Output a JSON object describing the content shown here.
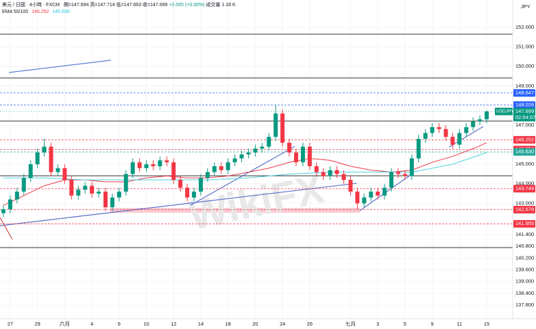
{
  "header": {
    "instrument": "美元 / 日圓 · 4小時 · FXCM",
    "ohlc": [
      "開=147.694",
      "高=147.714",
      "低=147.663",
      "收=147.699",
      "+0.005 (+0.00%)"
    ],
    "volume": "成交量 1.18 K",
    "ema_label": "EMA 50/100",
    "ema50_value": 146.252,
    "ema100_value": {
      "value": 145.63,
      "label": "145.630"
    },
    "currency": "JPY",
    "watermark": "WikiFX"
  },
  "chart_data": {
    "type": "candlestick",
    "categories": [
      null,
      "27",
      null,
      null,
      null,
      "29",
      null,
      null,
      null,
      "六月",
      null,
      null,
      null,
      "4",
      null,
      null,
      null,
      "6",
      null,
      null,
      null,
      "10",
      null,
      null,
      null,
      "12",
      null,
      null,
      null,
      "14",
      null,
      null,
      null,
      "18",
      null,
      null,
      null,
      "20",
      null,
      null,
      null,
      "24",
      null,
      null,
      null,
      "26",
      null,
      null,
      null,
      null,
      null,
      "七月",
      null,
      null,
      null,
      "3",
      null,
      null,
      null,
      "5",
      null,
      null,
      null,
      "9",
      null,
      null,
      null,
      "11",
      null,
      null,
      null,
      "15"
    ],
    "open": [
      142.5,
      142.7,
      143.2,
      143.6,
      144.3,
      145.0,
      145.6,
      145.9,
      144.6,
      144.8,
      144.2,
      143.4,
      143.7,
      143.9,
      143.5,
      143.6,
      142.8,
      143.3,
      143.6,
      144.5,
      145.1,
      144.8,
      145.0,
      144.9,
      145.2,
      145.1,
      144.2,
      143.8,
      143.3,
      143.6,
      144.3,
      144.6,
      144.9,
      144.7,
      145.1,
      145.3,
      145.5,
      145.6,
      145.8,
      145.9,
      146.4,
      147.6,
      146.1,
      145.6,
      145.1,
      145.9,
      144.9,
      144.6,
      144.4,
      144.7,
      144.5,
      144.2,
      143.6,
      143.0,
      143.3,
      143.6,
      143.4,
      143.8,
      144.6,
      144.5,
      144.4,
      145.3,
      146.3,
      146.6,
      146.9,
      146.8,
      146.4,
      146.0,
      146.6,
      146.9,
      147.2,
      147.3
    ],
    "high": [
      142.9,
      143.4,
      143.8,
      144.5,
      145.2,
      145.8,
      146.3,
      146.1,
      145.0,
      145.0,
      144.4,
      143.9,
      144.1,
      144.1,
      143.8,
      143.8,
      143.5,
      143.8,
      144.7,
      145.3,
      145.3,
      145.2,
      145.2,
      145.4,
      145.4,
      145.3,
      144.4,
      144.0,
      143.8,
      144.5,
      144.8,
      145.1,
      145.1,
      145.3,
      145.5,
      145.7,
      145.8,
      146.0,
      146.1,
      146.6,
      148.03,
      147.8,
      146.3,
      145.8,
      146.1,
      146.1,
      145.1,
      144.8,
      144.9,
      144.9,
      144.7,
      144.4,
      143.8,
      143.5,
      143.8,
      143.8,
      144.0,
      144.8,
      144.8,
      144.7,
      145.5,
      146.5,
      146.8,
      147.1,
      147.1,
      147.0,
      146.6,
      146.8,
      147.1,
      147.4,
      147.5,
      147.75
    ],
    "low": [
      142.3,
      142.5,
      143.0,
      143.4,
      144.1,
      144.8,
      145.4,
      144.4,
      144.4,
      144.0,
      143.2,
      143.2,
      143.5,
      143.3,
      143.3,
      142.6,
      142.6,
      143.1,
      143.4,
      144.3,
      144.6,
      144.6,
      144.7,
      144.7,
      144.9,
      144.0,
      143.6,
      143.1,
      143.1,
      143.4,
      144.1,
      144.4,
      144.5,
      144.5,
      144.9,
      145.1,
      145.3,
      145.4,
      145.6,
      145.7,
      146.2,
      145.9,
      145.4,
      144.9,
      144.9,
      144.7,
      144.4,
      144.2,
      144.2,
      144.3,
      144.0,
      143.4,
      142.7,
      142.8,
      143.1,
      143.2,
      143.2,
      143.6,
      144.3,
      144.2,
      144.2,
      145.1,
      146.1,
      146.4,
      146.6,
      146.2,
      145.8,
      145.8,
      146.4,
      146.7,
      147.0,
      147.1
    ],
    "close": [
      142.7,
      143.2,
      143.6,
      144.3,
      145.0,
      145.6,
      145.9,
      144.6,
      144.8,
      144.2,
      143.4,
      143.7,
      143.9,
      143.5,
      143.6,
      142.8,
      143.3,
      143.6,
      144.5,
      145.1,
      144.8,
      145.0,
      144.9,
      145.2,
      145.1,
      144.2,
      143.8,
      143.3,
      143.6,
      144.3,
      144.6,
      144.9,
      144.7,
      145.1,
      145.3,
      145.5,
      145.6,
      145.8,
      145.9,
      146.4,
      147.6,
      146.1,
      145.6,
      145.1,
      145.9,
      144.9,
      144.6,
      144.4,
      144.7,
      144.5,
      144.2,
      143.6,
      143.0,
      143.3,
      143.6,
      143.4,
      143.8,
      144.6,
      144.5,
      144.4,
      145.3,
      146.3,
      146.6,
      146.9,
      146.8,
      146.4,
      146.0,
      146.6,
      146.9,
      147.2,
      147.3,
      147.7
    ],
    "up_color": "#089981",
    "down_color": "#f23645",
    "series": [
      {
        "name": "EMA 50",
        "color": "#f23645",
        "x": [
          0,
          3,
          6,
          9,
          12,
          15,
          18,
          21,
          24,
          27,
          30,
          33,
          36,
          39,
          42,
          45,
          48,
          51,
          54,
          57,
          60,
          63,
          66,
          69,
          71
        ],
        "values": [
          142.9,
          143.4,
          143.9,
          144.2,
          144.2,
          144.1,
          144.1,
          144.3,
          144.4,
          144.3,
          144.3,
          144.4,
          144.6,
          144.8,
          145.1,
          145.3,
          145.2,
          144.9,
          144.7,
          144.6,
          144.7,
          145.1,
          145.4,
          145.8,
          146.1
        ]
      },
      {
        "name": "EMA 100",
        "color": "#4dd0e1",
        "x": [
          0,
          6,
          12,
          18,
          24,
          30,
          36,
          42,
          48,
          54,
          60,
          66,
          71
        ],
        "values": [
          144.3,
          144.3,
          144.2,
          144.2,
          144.2,
          144.2,
          144.3,
          144.5,
          144.6,
          144.6,
          144.6,
          145.0,
          145.6
        ]
      }
    ],
    "ylim": [
      137.1,
      153.4
    ],
    "yticks": [
      {
        "value": 152,
        "label": "152.000"
      },
      {
        "value": 151,
        "label": "151.000"
      },
      {
        "value": 150,
        "label": "150.000"
      },
      {
        "value": 149,
        "label": "149.000"
      },
      {
        "value": 147,
        "label": "147.000"
      },
      {
        "value": 145,
        "label": "145.000"
      },
      {
        "value": 144,
        "label": "144.000"
      },
      {
        "value": 143,
        "label": "143.000"
      },
      {
        "value": 141.4,
        "label": "141.400"
      },
      {
        "value": 140.8,
        "label": "140.800"
      },
      {
        "value": 140.2,
        "label": "140.200"
      },
      {
        "value": 139.6,
        "label": "139.600"
      },
      {
        "value": 139,
        "label": "139.000"
      },
      {
        "value": 138.4,
        "label": "138.400"
      },
      {
        "value": 137.8,
        "label": "137.800"
      }
    ],
    "levels": [
      {
        "value": 148.647,
        "color": "#2962ff"
      },
      {
        "value": 148.026,
        "color": "#2962ff"
      },
      {
        "value": 146.252,
        "color": "#f23645"
      },
      {
        "value": 145.754,
        "color": "#f23645"
      },
      {
        "value": {
          "value": 145.63,
          "label": "145.630"
        },
        "color": "#26a69a"
      },
      {
        "value": 143.749,
        "color": "#f23645"
      },
      {
        "value": 142.678,
        "color": "#f23645"
      },
      {
        "value": 141.955,
        "color": "#f23645"
      }
    ],
    "current": {
      "name": "USDJPY",
      "value": 147.699,
      "time": "02:54:07",
      "color": "#089981"
    },
    "grid": true
  }
}
